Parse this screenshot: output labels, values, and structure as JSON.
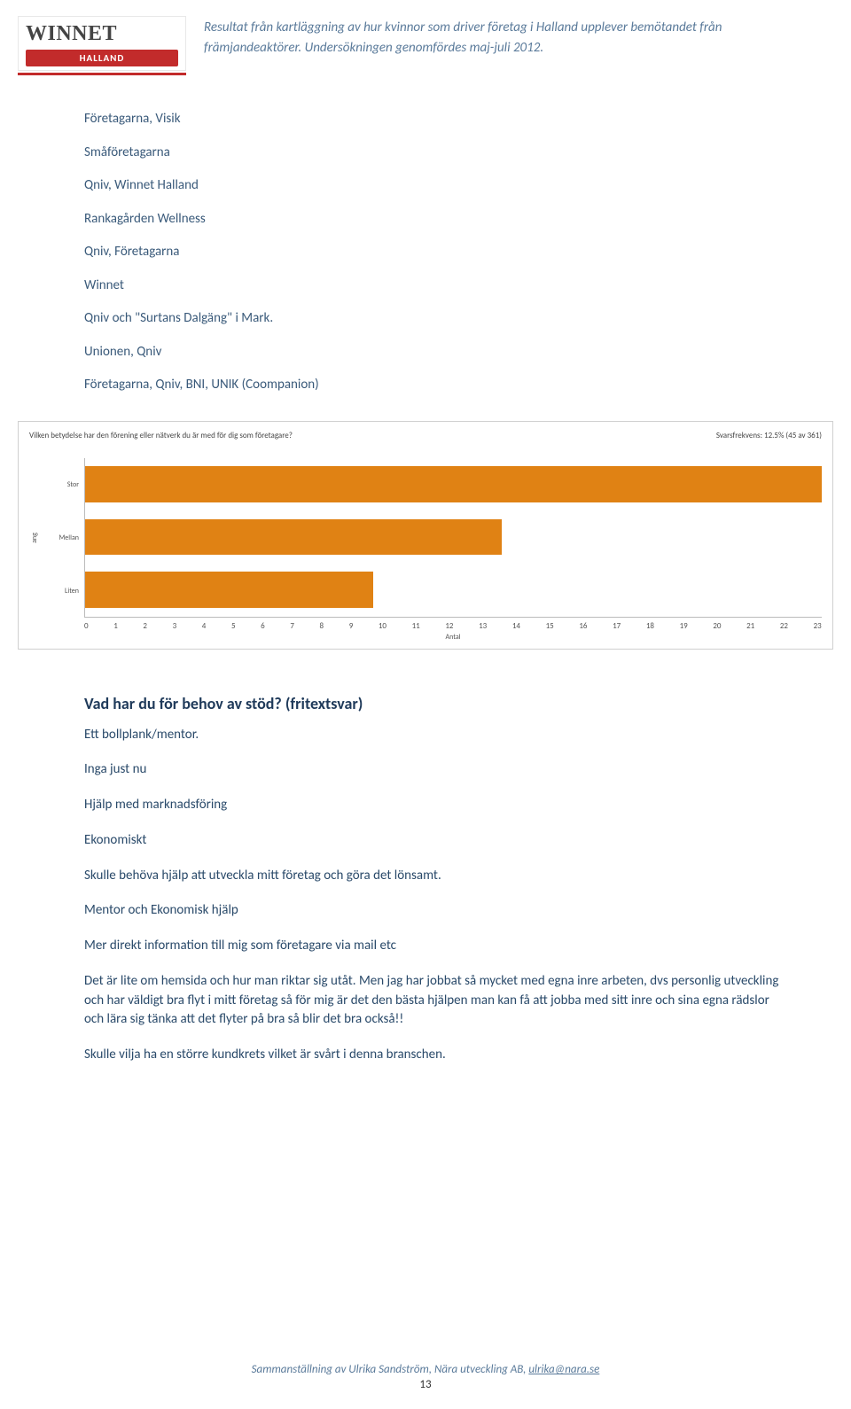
{
  "logo": {
    "top": "WINNET",
    "banner": "HALLAND"
  },
  "header_text": "Resultat från kartläggning av hur kvinnor som driver företag i Halland upplever bemötandet från främjandeaktörer. Undersökningen genomfördes maj-juli 2012.",
  "orgs": [
    "Företagarna, Visik",
    "Småföretagarna",
    "Qniv, Winnet Halland",
    "Rankagården Wellness",
    "Qniv, Företagarna",
    "Winnet",
    "Qniv och \"Surtans Dalgäng\" i Mark.",
    "Unionen, Qniv",
    "Företagarna, Qniv, BNI, UNIK (Coompanion)"
  ],
  "chart": {
    "type": "bar",
    "orientation": "horizontal",
    "title": "Vilken betydelse har den förening eller nätverk du är med för dig som företagare?",
    "meta": "Svarsfrekvens: 12.5% (45 av 361)",
    "categories": [
      "Stor",
      "Mellan",
      "Liten"
    ],
    "values": [
      23,
      13,
      9
    ],
    "xmax": 23,
    "xticks": [
      "0",
      "1",
      "2",
      "3",
      "4",
      "5",
      "6",
      "7",
      "8",
      "9",
      "10",
      "11",
      "12",
      "13",
      "14",
      "15",
      "16",
      "17",
      "18",
      "19",
      "20",
      "21",
      "22",
      "23"
    ],
    "xlabel": "Antal",
    "ylabel": "ang",
    "bar_color": "#e08214",
    "border_color": "#d0d0d0",
    "bg": "#ffffff",
    "title_fontsize": 9,
    "tick_fontsize": 9,
    "label_fontsize": 8
  },
  "heading2": "Vad har du för behov av stöd? (fritextsvar)",
  "responses": [
    "Ett bollplank/mentor.",
    "Inga just nu",
    "Hjälp med marknadsföring",
    "Ekonomiskt",
    "Skulle behöva hjälp att utveckla mitt företag och göra det lönsamt.",
    "Mentor och Ekonomisk hjälp",
    "Mer direkt information till mig som företagare via mail etc",
    "Det är lite om hemsida och hur man riktar sig utåt. Men jag har jobbat så mycket med egna inre arbeten, dvs personlig utveckling och har väldigt bra flyt i mitt företag så för mig är det den bästa hjälpen man kan få att jobba med sitt inre och sina egna rädslor och lära sig tänka att det flyter på bra så blir det bra också!!",
    "Skulle vilja ha en större kundkrets vilket är svårt i denna branschen."
  ],
  "footer": {
    "line": "Sammanställning av Ulrika Sandström, Nära utveckling AB, ",
    "email": "ulrika@nara.se",
    "page": "13"
  }
}
